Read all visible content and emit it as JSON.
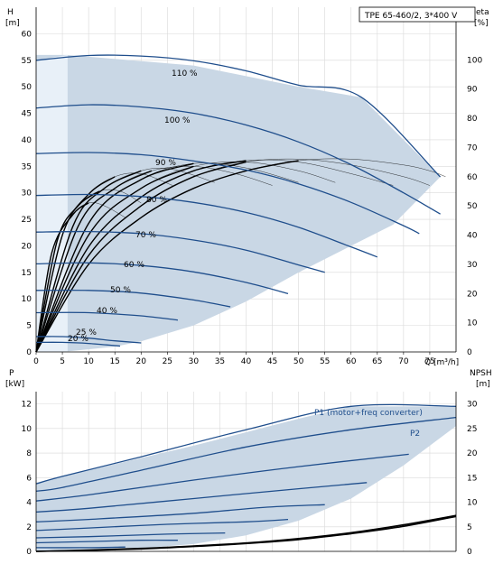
{
  "chart_data": [
    {
      "type": "line",
      "title": "TPE 65-460/2, 3*400 V",
      "xlabel": "Q [m³/h]",
      "ylabel_left": [
        "H",
        "[m]"
      ],
      "ylabel_right": [
        "eta",
        "[%]"
      ],
      "xlim": [
        0,
        80
      ],
      "ylim": [
        0,
        65
      ],
      "ylim_right": [
        0,
        118
      ],
      "grid": true,
      "x_ticks": [
        0,
        5,
        10,
        15,
        20,
        25,
        30,
        35,
        40,
        45,
        50,
        55,
        60,
        65,
        70,
        75
      ],
      "y_ticks": [
        0,
        5,
        10,
        15,
        20,
        25,
        30,
        35,
        40,
        45,
        50,
        55,
        60
      ],
      "y_ticks_right": [
        0,
        10,
        20,
        30,
        40,
        50,
        60,
        70,
        80,
        90,
        100
      ],
      "envelope": [
        [
          0,
          56
        ],
        [
          6,
          56
        ],
        [
          30,
          54
        ],
        [
          50,
          50
        ],
        [
          62,
          48
        ],
        [
          77,
          33
        ],
        [
          68,
          24
        ],
        [
          50,
          15
        ],
        [
          40,
          9.5
        ],
        [
          30,
          5
        ],
        [
          20,
          2
        ],
        [
          15,
          1
        ],
        [
          5,
          0
        ],
        [
          0,
          0
        ]
      ],
      "series": [
        {
          "name": "110 %",
          "points": [
            [
              0,
              55
            ],
            [
              10,
              55.9
            ],
            [
              20,
              55.8
            ],
            [
              30,
              54.9
            ],
            [
              40,
              53
            ],
            [
              50,
              50.3
            ],
            [
              62,
              48
            ],
            [
              77,
              33
            ]
          ]
        },
        {
          "name": "100 %",
          "points": [
            [
              0,
              46
            ],
            [
              10,
              46.6
            ],
            [
              20,
              46.2
            ],
            [
              30,
              45
            ],
            [
              40,
              42.8
            ],
            [
              50,
              39.6
            ],
            [
              60,
              35.3
            ],
            [
              70,
              30
            ],
            [
              77,
              26
            ]
          ]
        },
        {
          "name": "90 %",
          "points": [
            [
              0,
              37.4
            ],
            [
              10,
              37.6
            ],
            [
              20,
              37.2
            ],
            [
              30,
              36
            ],
            [
              40,
              34.3
            ],
            [
              50,
              31.7
            ],
            [
              60,
              28.2
            ],
            [
              70,
              23.8
            ],
            [
              73,
              22.3
            ]
          ]
        },
        {
          "name": "80 %",
          "points": [
            [
              0,
              29.5
            ],
            [
              10,
              29.7
            ],
            [
              20,
              29.3
            ],
            [
              30,
              28.2
            ],
            [
              40,
              26.3
            ],
            [
              50,
              23.5
            ],
            [
              60,
              19.8
            ],
            [
              65,
              17.9
            ]
          ]
        },
        {
          "name": "70 %",
          "points": [
            [
              0,
              22.6
            ],
            [
              10,
              22.7
            ],
            [
              20,
              22.3
            ],
            [
              30,
              21.1
            ],
            [
              40,
              19.2
            ],
            [
              50,
              16.4
            ],
            [
              55,
              15
            ]
          ]
        },
        {
          "name": "60 %",
          "points": [
            [
              0,
              16.6
            ],
            [
              10,
              16.8
            ],
            [
              20,
              16.3
            ],
            [
              30,
              15.1
            ],
            [
              40,
              13.1
            ],
            [
              48,
              11
            ]
          ]
        },
        {
          "name": "50 %",
          "points": [
            [
              0,
              11.6
            ],
            [
              10,
              11.6
            ],
            [
              20,
              11.1
            ],
            [
              30,
              9.8
            ],
            [
              37,
              8.5
            ]
          ]
        },
        {
          "name": "40 %",
          "points": [
            [
              0,
              7.4
            ],
            [
              10,
              7.4
            ],
            [
              20,
              6.8
            ],
            [
              27,
              6
            ]
          ]
        },
        {
          "name": "25 %",
          "points": [
            [
              0,
              2.9
            ],
            [
              5,
              2.9
            ],
            [
              10,
              2.6
            ],
            [
              15,
              2.1
            ],
            [
              20,
              1.7
            ]
          ]
        },
        {
          "name": "20 %",
          "points": [
            [
              0,
              1.8
            ],
            [
              5,
              1.8
            ],
            [
              10,
              1.6
            ],
            [
              16,
              1.1
            ]
          ]
        }
      ],
      "efficiency_curves": [
        {
          "speed": 1.1,
          "eta": [
            [
              0,
              0
            ],
            [
              10,
              30
            ],
            [
              20,
              46
            ],
            [
              30,
              56
            ],
            [
              40,
              62
            ],
            [
              50,
              65.5
            ],
            [
              60,
              66
            ],
            [
              70,
              64
            ],
            [
              75,
              62
            ],
            [
              78,
              60
            ]
          ]
        },
        {
          "speed": 1.0,
          "eta": [
            [
              0,
              0
            ],
            [
              10,
              33
            ],
            [
              20,
              50
            ],
            [
              30,
              60
            ],
            [
              40,
              65
            ],
            [
              50,
              66
            ],
            [
              60,
              64
            ],
            [
              70,
              60
            ],
            [
              75,
              57
            ]
          ]
        },
        {
          "speed": 0.9,
          "eta": [
            [
              0,
              0
            ],
            [
              10,
              36
            ],
            [
              20,
              53
            ],
            [
              30,
              62
            ],
            [
              40,
              65.5
            ],
            [
              50,
              65
            ],
            [
              60,
              61
            ],
            [
              68,
              57
            ]
          ]
        },
        {
          "speed": 0.8,
          "eta": [
            [
              0,
              0
            ],
            [
              10,
              40
            ],
            [
              20,
              56
            ],
            [
              30,
              63.5
            ],
            [
              40,
              65
            ],
            [
              50,
              62
            ],
            [
              57,
              58
            ]
          ]
        },
        {
          "speed": 0.7,
          "eta": [
            [
              0,
              0
            ],
            [
              10,
              44
            ],
            [
              20,
              59
            ],
            [
              30,
              64.5
            ],
            [
              40,
              63
            ],
            [
              50,
              58
            ]
          ]
        },
        {
          "speed": 0.6,
          "eta": [
            [
              0,
              0
            ],
            [
              8,
              43
            ],
            [
              15,
              56
            ],
            [
              22,
              62
            ],
            [
              30,
              63.5
            ],
            [
              38,
              61
            ],
            [
              45,
              57
            ]
          ]
        },
        {
          "speed": 0.5,
          "eta": [
            [
              0,
              0
            ],
            [
              7,
              43
            ],
            [
              13,
              56
            ],
            [
              20,
              62
            ],
            [
              26,
              62.5
            ],
            [
              34,
              58
            ]
          ]
        },
        {
          "speed": 0.4,
          "eta": [
            [
              0,
              0
            ],
            [
              5,
              40
            ],
            [
              10,
              54
            ],
            [
              15,
              60
            ],
            [
              20,
              61
            ],
            [
              26,
              57
            ]
          ]
        },
        {
          "speed": 0.3,
          "eta": [
            [
              0,
              0
            ],
            [
              4,
              38
            ],
            [
              8,
              50
            ],
            [
              12,
              55
            ],
            [
              16,
              55
            ],
            [
              20,
              51
            ]
          ]
        },
        {
          "speed": 0.25,
          "eta": [
            [
              0,
              0
            ],
            [
              3,
              34
            ],
            [
              7,
              47
            ],
            [
              10,
              51
            ],
            [
              13,
              50
            ],
            [
              17,
              46
            ]
          ]
        }
      ]
    },
    {
      "type": "line",
      "xlim": [
        0,
        80
      ],
      "ylabel_left": [
        "P",
        "[kW]"
      ],
      "ylabel_right": [
        "NPSH",
        "[m]"
      ],
      "ylim": [
        0,
        13
      ],
      "ylim_right": [
        0,
        32.5
      ],
      "grid": true,
      "y_ticks": [
        0,
        2,
        4,
        6,
        8,
        10,
        12
      ],
      "y_ticks_right": [
        0,
        5,
        10,
        15,
        20,
        25,
        30
      ],
      "envelope": [
        [
          0,
          5.6
        ],
        [
          5,
          6.1
        ],
        [
          30,
          8.6
        ],
        [
          50,
          10.8
        ],
        [
          60,
          11.8
        ],
        [
          80,
          11.8
        ],
        [
          80,
          10.2
        ],
        [
          70,
          7
        ],
        [
          60,
          4.3
        ],
        [
          50,
          2.5
        ],
        [
          40,
          1.3
        ],
        [
          30,
          0.6
        ],
        [
          20,
          0.25
        ],
        [
          5,
          0
        ],
        [
          0,
          0
        ]
      ],
      "series": [
        {
          "name": "P1 (motor+freq converter)",
          "points": [
            [
              0,
              5.5
            ],
            [
              5,
              6.1
            ],
            [
              20,
              7.7
            ],
            [
              40,
              9.9
            ],
            [
              60,
              11.8
            ],
            [
              80,
              11.8
            ]
          ]
        },
        {
          "name": "P2",
          "points": [
            [
              0,
              4.9
            ],
            [
              5,
              5.2
            ],
            [
              20,
              6.6
            ],
            [
              40,
              8.5
            ],
            [
              60,
              9.9
            ],
            [
              80,
              10.9
            ]
          ]
        },
        {
          "name": "",
          "points": [
            [
              0,
              4.1
            ],
            [
              10,
              4.6
            ],
            [
              30,
              5.8
            ],
            [
              50,
              6.9
            ],
            [
              71,
              7.9
            ]
          ]
        },
        {
          "name": "",
          "points": [
            [
              0,
              3.2
            ],
            [
              10,
              3.5
            ],
            [
              30,
              4.3
            ],
            [
              50,
              5.1
            ],
            [
              63,
              5.6
            ]
          ]
        },
        {
          "name": "",
          "points": [
            [
              0,
              2.4
            ],
            [
              10,
              2.6
            ],
            [
              30,
              3.1
            ],
            [
              44,
              3.6
            ],
            [
              55,
              3.8
            ]
          ]
        },
        {
          "name": "",
          "points": [
            [
              0,
              1.7
            ],
            [
              10,
              1.9
            ],
            [
              25,
              2.2
            ],
            [
              40,
              2.4
            ],
            [
              48,
              2.6
            ]
          ]
        },
        {
          "name": "",
          "points": [
            [
              0,
              1.1
            ],
            [
              10,
              1.2
            ],
            [
              25,
              1.4
            ],
            [
              36,
              1.5
            ]
          ]
        },
        {
          "name": "",
          "points": [
            [
              0,
              0.7
            ],
            [
              10,
              0.8
            ],
            [
              20,
              0.9
            ],
            [
              27,
              0.9
            ]
          ]
        },
        {
          "name": "",
          "points": [
            [
              0,
              0.3
            ],
            [
              10,
              0.3
            ],
            [
              17,
              0.35
            ]
          ]
        }
      ],
      "npsh_curves": [
        {
          "points": [
            [
              0,
              0
            ],
            [
              10,
              0.2
            ],
            [
              20,
              0.5
            ],
            [
              30,
              1.0
            ],
            [
              40,
              1.6
            ],
            [
              50,
              2.4
            ],
            [
              60,
              3.6
            ],
            [
              70,
              5.1
            ],
            [
              80,
              7.1
            ]
          ]
        },
        {
          "points": [
            [
              0,
              0
            ],
            [
              10,
              0.25
            ],
            [
              20,
              0.6
            ],
            [
              30,
              1.1
            ],
            [
              40,
              1.7
            ],
            [
              50,
              2.6
            ],
            [
              60,
              3.8
            ],
            [
              70,
              5.4
            ],
            [
              80,
              7.3
            ]
          ]
        }
      ]
    }
  ],
  "colors": {
    "curve": "#1f4e8c",
    "envelope_fill": "#c9d7e5",
    "envelope_fill_light": "#e8f0f8",
    "grid": "#d9d9d9",
    "eta": "#000000"
  }
}
